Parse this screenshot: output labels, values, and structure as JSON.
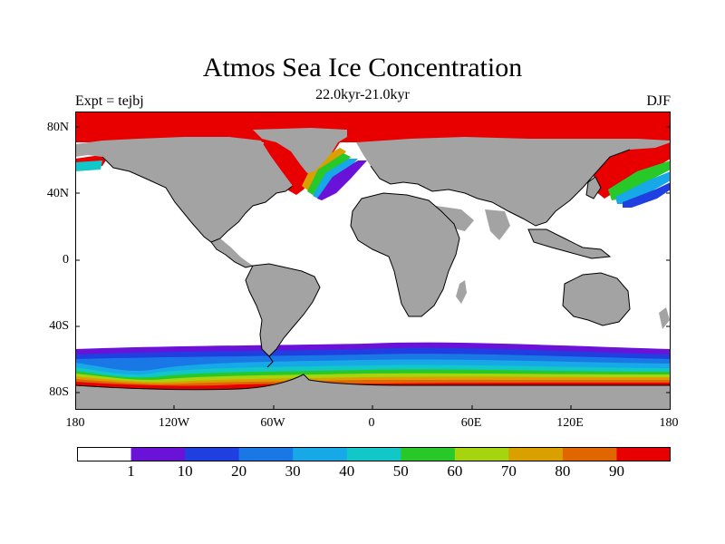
{
  "header": {
    "title": "Atmos Sea Ice Concentration",
    "subtitle": "22.0kyr-21.0kyr",
    "left_label": "Expt = tejbj",
    "right_label": "DJF"
  },
  "axes": {
    "lat_ticks": [
      "80N",
      "40N",
      "0",
      "40S",
      "80S"
    ],
    "lon_ticks": [
      "180",
      "120W",
      "60W",
      "0",
      "60E",
      "120E",
      "180"
    ]
  },
  "colorbar": {
    "labels": [
      "1",
      "10",
      "20",
      "30",
      "40",
      "50",
      "60",
      "70",
      "80",
      "90"
    ],
    "colors": [
      "#ffffff",
      "#6a12d8",
      "#1f3fe0",
      "#1a78e6",
      "#17a8e8",
      "#12c7c7",
      "#27c827",
      "#a6d40e",
      "#d9a000",
      "#e26600",
      "#e80000"
    ]
  },
  "map": {
    "land_color": "#a3a3a3",
    "ocean_color": "#ffffff",
    "coast_color": "#000000"
  }
}
